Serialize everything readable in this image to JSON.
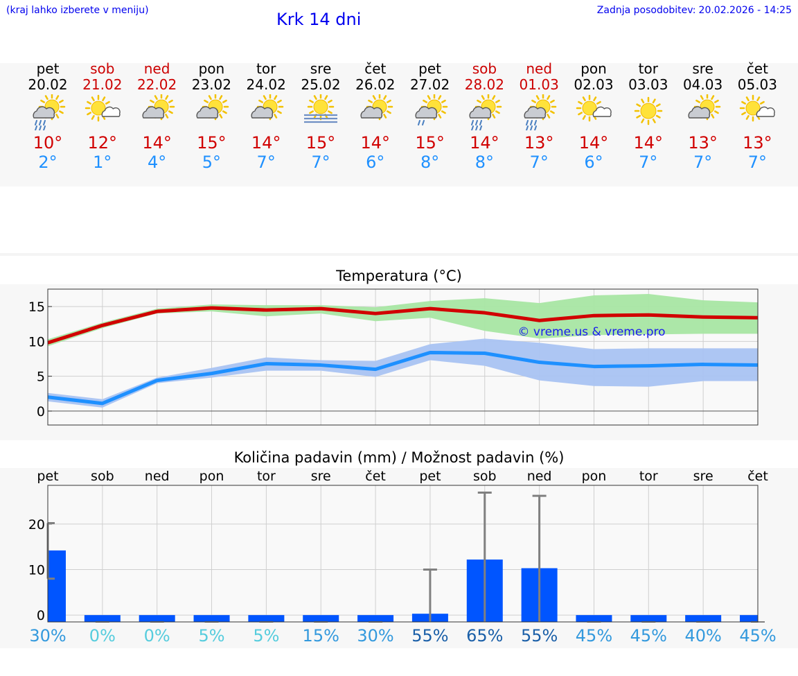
{
  "header": {
    "hint": "(kraj lahko izberete v meniju)",
    "title": "Krk 14 dni",
    "updated_label": "Zadnja posodobitev:",
    "updated_value": "20.02.2026 - 14:25"
  },
  "days": [
    {
      "name": "pet",
      "date": "20.02",
      "weekend": false,
      "icon": "partly-cloudy-rain-icon",
      "tmax": "10°",
      "tmin": "2°"
    },
    {
      "name": "sob",
      "date": "21.02",
      "weekend": true,
      "icon": "sun-cloud-icon",
      "tmax": "12°",
      "tmin": "1°"
    },
    {
      "name": "ned",
      "date": "22.02",
      "weekend": true,
      "icon": "partly-cloudy-icon",
      "tmax": "14°",
      "tmin": "4°"
    },
    {
      "name": "pon",
      "date": "23.02",
      "weekend": false,
      "icon": "partly-cloudy-icon",
      "tmax": "15°",
      "tmin": "5°"
    },
    {
      "name": "tor",
      "date": "24.02",
      "weekend": false,
      "icon": "partly-cloudy-icon",
      "tmax": "14°",
      "tmin": "7°"
    },
    {
      "name": "sre",
      "date": "25.02",
      "weekend": false,
      "icon": "sun-fog-icon",
      "tmax": "15°",
      "tmin": "7°"
    },
    {
      "name": "čet",
      "date": "26.02",
      "weekend": false,
      "icon": "partly-cloudy-icon",
      "tmax": "14°",
      "tmin": "6°"
    },
    {
      "name": "pet",
      "date": "27.02",
      "weekend": false,
      "icon": "partly-cloudy-light-rain-icon",
      "tmax": "15°",
      "tmin": "8°"
    },
    {
      "name": "sob",
      "date": "28.02",
      "weekend": true,
      "icon": "partly-cloudy-rain-icon",
      "tmax": "14°",
      "tmin": "8°"
    },
    {
      "name": "ned",
      "date": "01.03",
      "weekend": true,
      "icon": "partly-cloudy-rain-icon",
      "tmax": "13°",
      "tmin": "7°"
    },
    {
      "name": "pon",
      "date": "02.03",
      "weekend": false,
      "icon": "sun-cloud-icon",
      "tmax": "14°",
      "tmin": "6°"
    },
    {
      "name": "tor",
      "date": "03.03",
      "weekend": false,
      "icon": "sun-icon",
      "tmax": "14°",
      "tmin": "7°"
    },
    {
      "name": "sre",
      "date": "04.03",
      "weekend": false,
      "icon": "partly-cloudy-icon",
      "tmax": "13°",
      "tmin": "7°"
    },
    {
      "name": "čet",
      "date": "05.03",
      "weekend": false,
      "icon": "sun-cloud-icon",
      "tmax": "13°",
      "tmin": "7°"
    }
  ],
  "colors": {
    "weekend": "#cc0000",
    "tmax": "#d10000",
    "tmin": "#1e90ff",
    "max_band": "#a8e6a3",
    "min_band": "#a9c3f2",
    "bar": "#0055ff",
    "errbar": "#808080"
  },
  "chart_data": [
    {
      "type": "line",
      "title": "Temperatura (°C)",
      "watermark": "© vreme.us & vreme.pro",
      "categories": [
        "pet",
        "sob",
        "ned",
        "pon",
        "tor",
        "sre",
        "čet",
        "pet",
        "sob",
        "ned",
        "pon",
        "tor",
        "sre",
        "čet"
      ],
      "ylim": [
        -2,
        17.5
      ],
      "yticks": [
        0,
        5,
        10,
        15
      ],
      "series": [
        {
          "name": "max",
          "values": [
            9.8,
            12.3,
            14.3,
            14.8,
            14.5,
            14.7,
            14.0,
            14.7,
            14.1,
            13.0,
            13.7,
            13.8,
            13.5,
            13.4
          ],
          "band_low": [
            9.3,
            11.9,
            14.0,
            14.3,
            13.6,
            14.0,
            12.9,
            13.4,
            11.5,
            10.4,
            10.9,
            11.0,
            11.1,
            11.1
          ],
          "band_high": [
            10.3,
            12.7,
            14.7,
            15.3,
            15.2,
            15.2,
            14.9,
            15.8,
            16.2,
            15.5,
            16.6,
            16.8,
            15.9,
            15.6
          ]
        },
        {
          "name": "min",
          "values": [
            2.0,
            1.1,
            4.4,
            5.4,
            6.8,
            6.6,
            6.0,
            8.4,
            8.3,
            7.0,
            6.4,
            6.5,
            6.7,
            6.6
          ],
          "band_low": [
            1.4,
            0.5,
            4.0,
            4.8,
            5.8,
            5.8,
            4.9,
            7.3,
            6.5,
            4.4,
            3.6,
            3.5,
            4.3,
            4.3
          ],
          "band_high": [
            2.6,
            1.7,
            4.8,
            6.2,
            7.7,
            7.3,
            7.2,
            9.6,
            10.4,
            9.8,
            8.9,
            9.0,
            9.0,
            9.0
          ]
        }
      ]
    },
    {
      "type": "bar",
      "title": "Količina padavin (mm) / Možnost padavin (%)",
      "categories": [
        "pet",
        "sob",
        "ned",
        "pon",
        "tor",
        "sre",
        "čet",
        "pet",
        "sob",
        "ned",
        "pon",
        "tor",
        "sre",
        "čet"
      ],
      "ylim": [
        -1.5,
        28.5
      ],
      "yticks": [
        0,
        10,
        20
      ],
      "values": [
        14.2,
        0,
        0,
        0,
        0,
        0,
        0,
        0.3,
        12.2,
        10.3,
        0,
        0,
        0,
        0
      ],
      "err_low": [
        8.0,
        0,
        0,
        0,
        0,
        0,
        0,
        0,
        0,
        0,
        0,
        0,
        0,
        0
      ],
      "err_high": [
        20.2,
        0,
        0,
        0,
        0,
        0,
        0,
        10.0,
        26.9,
        26.2,
        0,
        0,
        0,
        0
      ],
      "probability": [
        "30%",
        "0%",
        "0%",
        "5%",
        "5%",
        "15%",
        "30%",
        "55%",
        "65%",
        "55%",
        "45%",
        "45%",
        "40%",
        "45%"
      ],
      "probability_colors": [
        "#3399dd",
        "#55ccdd",
        "#55ccdd",
        "#55ccdd",
        "#55ccdd",
        "#3399dd",
        "#3399dd",
        "#1a5fa8",
        "#1a5fa8",
        "#1a5fa8",
        "#3399dd",
        "#3399dd",
        "#3399dd",
        "#3399dd"
      ]
    }
  ]
}
